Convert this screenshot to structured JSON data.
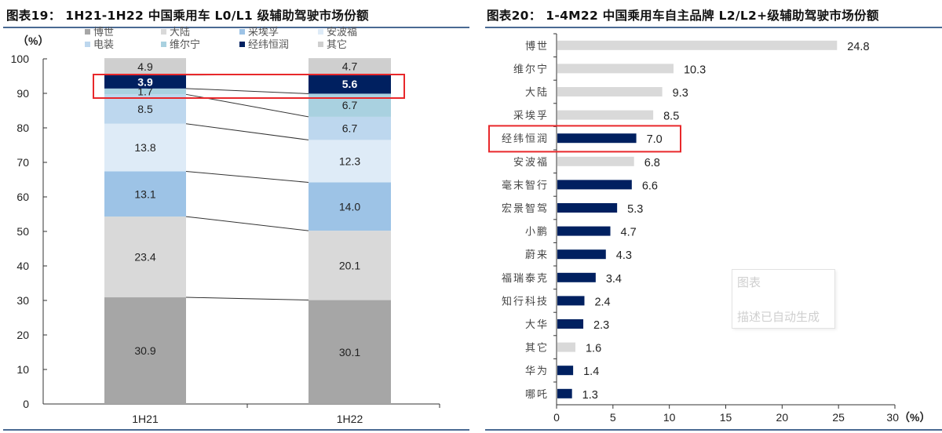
{
  "left": {
    "title": "图表19： 1H21-1H22 中国乘用车 L0/L1 级辅助驾驶市场份额",
    "y_unit": "（%）"
  },
  "right": {
    "title": "图表20： 1-4M22 中国乘用车自主品牌 L2/L2+级辅助驾驶市场份额",
    "x_unit": "（%）",
    "overlay": {
      "line1": "图表",
      "line2": "描述已自动生成"
    }
  },
  "chart_data": [
    {
      "type": "bar",
      "stacked": true,
      "title": "1H21-1H22 中国乘用车 L0/L1 级辅助驾驶市场份额",
      "ylabel": "（%）",
      "xlabel": "",
      "ylim": [
        0,
        100
      ],
      "yticks": [
        0,
        10,
        20,
        30,
        40,
        50,
        60,
        70,
        80,
        90,
        100
      ],
      "categories": [
        "1H21",
        "1H22"
      ],
      "legend_position": "top",
      "series": [
        {
          "name": "博世",
          "color": "#a6a6a6",
          "values": [
            30.9,
            30.1
          ]
        },
        {
          "name": "大陆",
          "color": "#d9d9d9",
          "values": [
            23.4,
            20.1
          ]
        },
        {
          "name": "采埃孚",
          "color": "#9dc3e6",
          "values": [
            13.1,
            14.0
          ]
        },
        {
          "name": "安波福",
          "color": "#deebf7",
          "values": [
            13.8,
            12.3
          ]
        },
        {
          "name": "电装",
          "color": "#bdd7ee",
          "values": [
            8.5,
            6.7
          ]
        },
        {
          "name": "维尔宁",
          "color": "#a9d1e0",
          "values": [
            1.7,
            6.7
          ]
        },
        {
          "name": "经纬恒润",
          "color": "#002060",
          "values": [
            3.9,
            5.6
          ]
        },
        {
          "name": "其它",
          "color": "#cfcfcf",
          "values": [
            4.9,
            4.7
          ]
        }
      ],
      "legend_order": [
        "博世",
        "大陆",
        "采埃孚",
        "安波福",
        "电装",
        "维尔宁",
        "经纬恒润",
        "其它"
      ],
      "annotations": [
        "red rectangle highlighting 经纬恒润 segments",
        "connector lines between stacked segment boundaries"
      ]
    },
    {
      "type": "bar",
      "orientation": "horizontal",
      "title": "1-4M22 中国乘用车自主品牌 L2/L2+级辅助驾驶市场份额",
      "xlabel": "（%）",
      "xlim": [
        0,
        30
      ],
      "xticks": [
        0,
        5,
        10,
        15,
        20,
        25,
        30
      ],
      "categories": [
        "博世",
        "维尔宁",
        "大陆",
        "采埃孚",
        "经纬恒润",
        "安波福",
        "毫末智行",
        "宏景智驾",
        "小鹏",
        "蔚来",
        "福瑞泰克",
        "知行科技",
        "大华",
        "其它",
        "华为",
        "哪吒"
      ],
      "values": [
        24.8,
        10.3,
        9.3,
        8.5,
        7.0,
        6.8,
        6.6,
        5.3,
        4.7,
        4.3,
        3.4,
        2.4,
        2.3,
        1.6,
        1.4,
        1.3
      ],
      "bar_colors": [
        "#d9d9d9",
        "#d9d9d9",
        "#d9d9d9",
        "#d9d9d9",
        "#002060",
        "#d9d9d9",
        "#002060",
        "#002060",
        "#002060",
        "#002060",
        "#002060",
        "#002060",
        "#002060",
        "#d9d9d9",
        "#002060",
        "#002060"
      ],
      "annotations": [
        "red rectangle highlighting 经纬恒润"
      ]
    }
  ],
  "colors": {
    "highlight": "#e8282b",
    "rule": "#4a6a93",
    "navy": "#002060"
  }
}
